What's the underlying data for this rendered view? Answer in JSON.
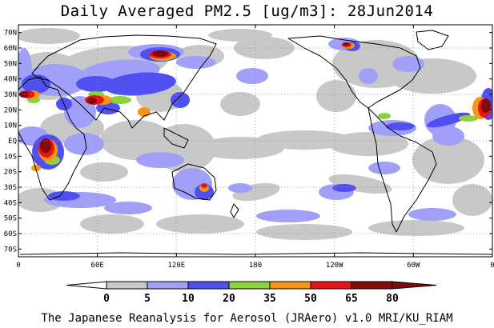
{
  "title": "Daily Averaged PM2.5 [ug/m3]: 28Jun2014",
  "credit": "The Japanese Reanalysis for Aerosol (JRAero) v1.0 MRI/KU_RIAM",
  "map": {
    "lon_ticks": [
      {
        "lon": 0,
        "label": "0"
      },
      {
        "lon": 60,
        "label": "60E"
      },
      {
        "lon": 120,
        "label": "120E"
      },
      {
        "lon": 180,
        "label": "180"
      },
      {
        "lon": 240,
        "label": "120W"
      },
      {
        "lon": 300,
        "label": "60W"
      },
      {
        "lon": 360,
        "label": "0"
      }
    ],
    "lat_ticks": [
      {
        "lat": 70,
        "label": "70N"
      },
      {
        "lat": 60,
        "label": "60N"
      },
      {
        "lat": 50,
        "label": "50N"
      },
      {
        "lat": 40,
        "label": "40N"
      },
      {
        "lat": 30,
        "label": "30N"
      },
      {
        "lat": 20,
        "label": "20N"
      },
      {
        "lat": 10,
        "label": "10N"
      },
      {
        "lat": 0,
        "label": "EQ"
      },
      {
        "lat": -10,
        "label": "10S"
      },
      {
        "lat": -20,
        "label": "20S"
      },
      {
        "lat": -30,
        "label": "30S"
      },
      {
        "lat": -40,
        "label": "40S"
      },
      {
        "lat": -50,
        "label": "50S"
      },
      {
        "lat": -60,
        "label": "60S"
      },
      {
        "lat": -70,
        "label": "70S"
      }
    ],
    "lon_range": [
      0,
      360
    ],
    "lat_range": [
      -75,
      75
    ],
    "grid": true
  },
  "legend": {
    "boundaries": [
      "0",
      "5",
      "10",
      "20",
      "35",
      "50",
      "65",
      "80"
    ],
    "colors": [
      "#ffffff",
      "#c8c8c8",
      "#a0a0f8",
      "#5050f0",
      "#8cd23c",
      "#f59614",
      "#e61414",
      "#820a0a"
    ]
  }
}
